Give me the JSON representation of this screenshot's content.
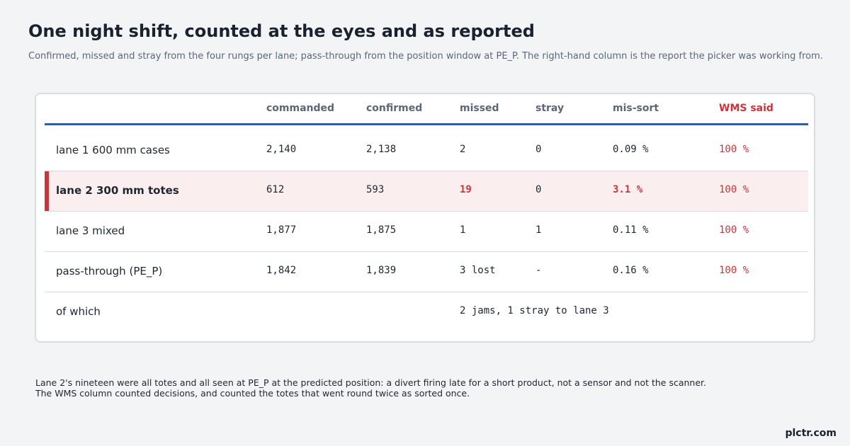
{
  "title": "One night shift, counted at the eyes and as reported",
  "subtitle": "Confirmed, missed and stray from the four rungs per lane; pass-through from the position window at PE_P. The right-hand column is the report the picker was working from.",
  "table": {
    "headers": [
      "",
      "commanded",
      "confirmed",
      "missed",
      "stray",
      "mis-sort",
      "WMS said"
    ],
    "rows": [
      {
        "label": "lane 1  600 mm cases",
        "commanded": "2,140",
        "confirmed": "2,138",
        "missed": "2",
        "stray": "0",
        "missort": "0.09 %",
        "wms": "100 %"
      },
      {
        "label": "lane 2  300 mm totes",
        "commanded": "612",
        "confirmed": "593",
        "missed": "19",
        "stray": "0",
        "missort": "3.1 %",
        "wms": "100 %"
      },
      {
        "label": "lane 3  mixed",
        "commanded": "1,877",
        "confirmed": "1,875",
        "missed": "1",
        "stray": "1",
        "missort": "0.11 %",
        "wms": "100 %"
      },
      {
        "label": "pass-through (PE_P)",
        "commanded": "1,842",
        "confirmed": "1,839",
        "missed": "3 lost",
        "stray": "-",
        "missort": "0.16 %",
        "wms": "100 %"
      }
    ],
    "of_which": {
      "label": "of which",
      "detail": "2 jams, 1 stray to lane 3"
    }
  },
  "note": {
    "line1": "Lane 2's nineteen were all totes and all seen at PE_P at the predicted position: a divert firing late for a short product, not a sensor and not the scanner.",
    "line2": "The WMS column counted decisions, and counted the totes that went round twice as sorted once."
  },
  "brand": "plctr.com",
  "colors": {
    "accent_red": "#c9353c",
    "header_rule_blue": "#2f5f9e",
    "highlight_row_bg": "#fbeeee"
  }
}
